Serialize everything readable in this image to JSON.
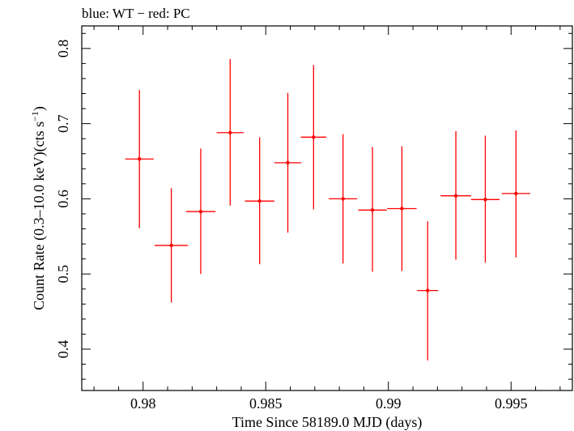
{
  "chart_data": {
    "type": "scatter",
    "title": "blue: WT − red: PC",
    "xlabel": "Time Since 58189.0 MJD (days)",
    "ylabel_main": "Count Rate (0.3–10.0 keV)(cts s",
    "ylabel_sup": "−1",
    "ylabel_end": ")",
    "xlim": [
      0.9775,
      0.9975
    ],
    "ylim": [
      0.345,
      0.83
    ],
    "x_ticks": [
      {
        "value": 0.98,
        "label": "0.98"
      },
      {
        "value": 0.985,
        "label": "0.985"
      },
      {
        "value": 0.99,
        "label": "0.99"
      },
      {
        "value": 0.995,
        "label": "0.995"
      }
    ],
    "y_ticks": [
      {
        "value": 0.4,
        "label": "0.4"
      },
      {
        "value": 0.5,
        "label": "0.5"
      },
      {
        "value": 0.6,
        "label": "0.6"
      },
      {
        "value": 0.7,
        "label": "0.7"
      },
      {
        "value": 0.8,
        "label": "0.8"
      }
    ],
    "grid": false,
    "series": [
      {
        "color": "#ff0000",
        "points": [
          {
            "x": 0.97985,
            "y": 0.653,
            "xerr": 0.00058,
            "ylo": 0.561,
            "yhi": 0.745
          },
          {
            "x": 0.98115,
            "y": 0.538,
            "xerr": 0.00068,
            "ylo": 0.462,
            "yhi": 0.614
          },
          {
            "x": 0.98235,
            "y": 0.583,
            "xerr": 0.0006,
            "ylo": 0.5,
            "yhi": 0.667
          },
          {
            "x": 0.98355,
            "y": 0.688,
            "xerr": 0.00055,
            "ylo": 0.591,
            "yhi": 0.786
          },
          {
            "x": 0.98475,
            "y": 0.597,
            "xerr": 0.0006,
            "ylo": 0.513,
            "yhi": 0.682
          },
          {
            "x": 0.9859,
            "y": 0.648,
            "xerr": 0.00055,
            "ylo": 0.555,
            "yhi": 0.741
          },
          {
            "x": 0.98695,
            "y": 0.682,
            "xerr": 0.00052,
            "ylo": 0.586,
            "yhi": 0.778
          },
          {
            "x": 0.98815,
            "y": 0.6,
            "xerr": 0.00058,
            "ylo": 0.514,
            "yhi": 0.686
          },
          {
            "x": 0.98935,
            "y": 0.585,
            "xerr": 0.00058,
            "ylo": 0.503,
            "yhi": 0.669
          },
          {
            "x": 0.99055,
            "y": 0.587,
            "xerr": 0.0006,
            "ylo": 0.504,
            "yhi": 0.67
          },
          {
            "x": 0.9916,
            "y": 0.478,
            "xerr": 0.00043,
            "ylo": 0.385,
            "yhi": 0.57
          },
          {
            "x": 0.99275,
            "y": 0.604,
            "xerr": 0.00062,
            "ylo": 0.519,
            "yhi": 0.69
          },
          {
            "x": 0.99395,
            "y": 0.599,
            "xerr": 0.00058,
            "ylo": 0.515,
            "yhi": 0.684
          },
          {
            "x": 0.9952,
            "y": 0.607,
            "xerr": 0.00058,
            "ylo": 0.522,
            "yhi": 0.691
          }
        ]
      }
    ]
  }
}
